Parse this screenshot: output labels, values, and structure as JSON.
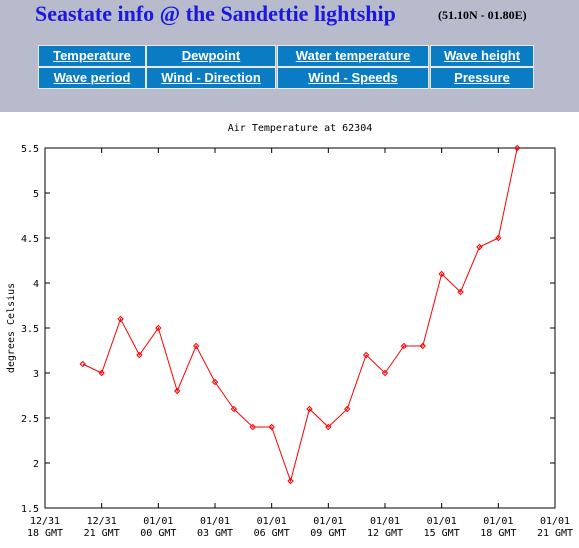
{
  "header": {
    "title": "Seastate info @ the Sandettie lightship",
    "coords": "(51.10N - 01.80E)"
  },
  "nav": {
    "rows": [
      [
        "Temperature",
        "Dewpoint",
        "Water temperature",
        "Wave height"
      ],
      [
        "Wave period",
        "Wind - Direction",
        "Wind - Speeds",
        "Pressure"
      ]
    ]
  },
  "chart_data": {
    "type": "line",
    "title": "Air Temperature at 62304",
    "y_label": "degrees Celsius",
    "x": [
      2,
      3,
      4,
      5,
      6,
      7,
      8,
      9,
      10,
      11,
      12,
      13,
      14,
      15,
      16,
      17,
      18,
      19,
      20,
      21,
      22,
      23,
      24,
      25
    ],
    "series": [
      {
        "name": "Air Temperature",
        "color": "#ff0000",
        "values": [
          3.1,
          3.0,
          3.6,
          3.2,
          3.5,
          2.8,
          3.3,
          2.9,
          2.6,
          2.4,
          2.4,
          1.8,
          2.6,
          2.4,
          2.6,
          3.2,
          3.0,
          3.3,
          3.3,
          4.1,
          3.9,
          4.4,
          4.5,
          5.5
        ]
      }
    ],
    "xlim": [
      0,
      27
    ],
    "xticks": [
      {
        "value": 0,
        "label": "12/31\n18 GMT"
      },
      {
        "value": 3,
        "label": "12/31\n21 GMT"
      },
      {
        "value": 6,
        "label": "01/01\n00 GMT"
      },
      {
        "value": 9,
        "label": "01/01\n03 GMT"
      },
      {
        "value": 12,
        "label": "01/01\n06 GMT"
      },
      {
        "value": 15,
        "label": "01/01\n09 GMT"
      },
      {
        "value": 18,
        "label": "01/01\n12 GMT"
      },
      {
        "value": 21,
        "label": "01/01\n15 GMT"
      },
      {
        "value": 24,
        "label": "01/01\n18 GMT"
      },
      {
        "value": 27,
        "label": "01/01\n21 GMT"
      }
    ],
    "ylim": [
      1.5,
      5.5
    ],
    "yticks": [
      1.5,
      2,
      2.5,
      3,
      3.5,
      4,
      4.5,
      5,
      5.5
    ],
    "grid": false
  }
}
